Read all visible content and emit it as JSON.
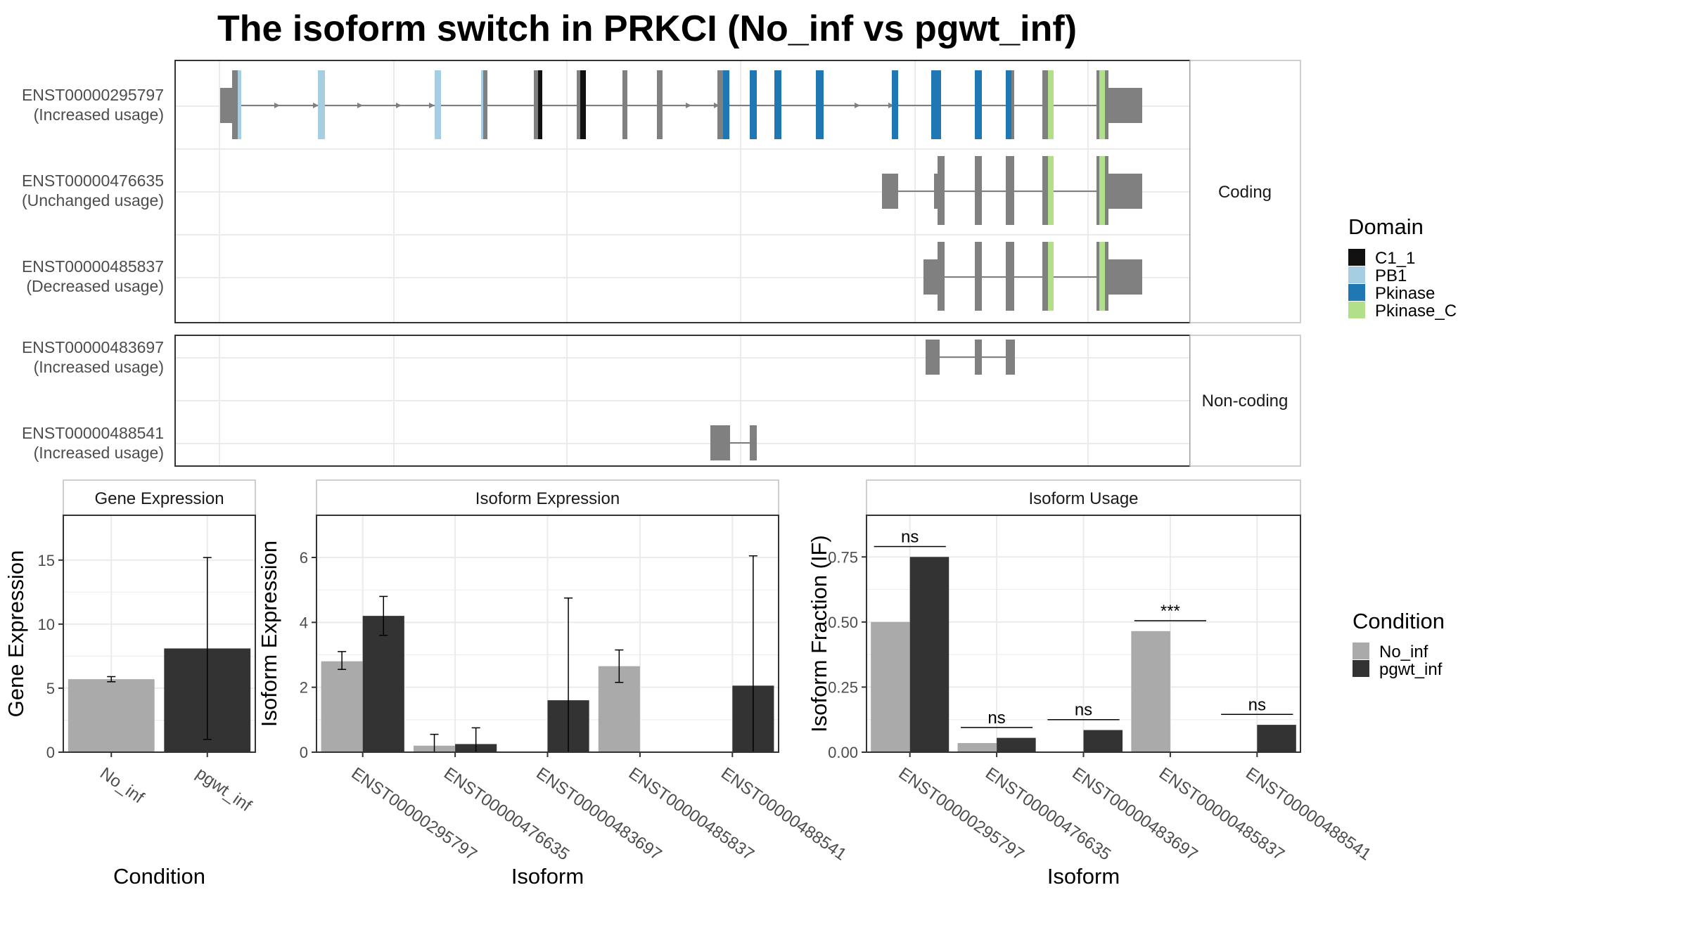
{
  "title": "The isoform switch in PRKCI (No_inf vs pgwt_inf)",
  "colors": {
    "intron": "#7f7f7f",
    "exon_plain": "#808080",
    "no_inf": "#aaaaaa",
    "pgwt_inf": "#333333",
    "grid": "#ebebeb",
    "panel_border": "#333333",
    "strip_border": "#bfbfbf"
  },
  "structure": {
    "facets": [
      {
        "label": "Coding",
        "isoforms": [
          {
            "id": "ENST00000295797",
            "usage": "(Increased usage)"
          },
          {
            "id": "ENST00000476635",
            "usage": "(Unchanged usage)"
          },
          {
            "id": "ENST00000485837",
            "usage": "(Decreased usage)"
          }
        ]
      },
      {
        "label": "Non-coding",
        "isoforms": [
          {
            "id": "ENST00000483697",
            "usage": "(Increased usage)"
          },
          {
            "id": "ENST00000488541",
            "usage": "(Increased usage)"
          }
        ]
      }
    ],
    "domain_legend": {
      "title": "Domain",
      "items": [
        {
          "label": "C1_1",
          "color": "#111111"
        },
        {
          "label": "PB1",
          "color": "#a6cee3"
        },
        {
          "label": "Pkinase",
          "color": "#1f78b4"
        },
        {
          "label": "Pkinase_C",
          "color": "#b2df8a"
        }
      ]
    }
  },
  "condition_legend": {
    "title": "Condition",
    "items": [
      {
        "label": "No_inf",
        "color": "#aaaaaa"
      },
      {
        "label": "pgwt_inf",
        "color": "#333333"
      }
    ]
  },
  "chart_data": [
    {
      "type": "bar",
      "title": "Gene Expression",
      "xlabel": "Condition",
      "ylabel": "Gene Expression",
      "categories": [
        "No_inf",
        "pgwt_inf"
      ],
      "values": [
        5.7,
        8.1
      ],
      "error_low": [
        5.5,
        1.0
      ],
      "error_high": [
        5.9,
        15.2
      ],
      "ylim": [
        0,
        18.5
      ],
      "yticks": [
        0,
        5,
        10,
        15
      ],
      "ytick_labels": [
        "0",
        "5",
        "10",
        "15"
      ],
      "grid": true
    },
    {
      "type": "bar",
      "title": "Isoform Expression",
      "xlabel": "Isoform",
      "ylabel": "Isoform Expression",
      "categories": [
        "ENST00000295797",
        "ENST00000476635",
        "ENST00000483697",
        "ENST00000485837",
        "ENST00000488541"
      ],
      "series": [
        {
          "name": "No_inf",
          "values": [
            2.8,
            0.2,
            0.0,
            2.65,
            0.0
          ],
          "error_low": [
            2.55,
            0.0,
            0.0,
            2.15,
            0.0
          ],
          "error_high": [
            3.1,
            0.55,
            0.0,
            3.15,
            0.0
          ]
        },
        {
          "name": "pgwt_inf",
          "values": [
            4.2,
            0.25,
            1.6,
            0.0,
            2.05
          ],
          "error_low": [
            3.6,
            0.0,
            0.0,
            0.0,
            0.0
          ],
          "error_high": [
            4.8,
            0.75,
            4.75,
            0.0,
            6.05
          ]
        }
      ],
      "ylim": [
        0,
        7.3
      ],
      "yticks": [
        0,
        2,
        4,
        6
      ],
      "ytick_labels": [
        "0",
        "2",
        "4",
        "6"
      ],
      "grid": true
    },
    {
      "type": "bar",
      "title": "Isoform Usage",
      "xlabel": "Isoform",
      "ylabel": "Isoform Fraction (IF)",
      "categories": [
        "ENST00000295797",
        "ENST00000476635",
        "ENST00000483697",
        "ENST00000485837",
        "ENST00000488541"
      ],
      "series": [
        {
          "name": "No_inf",
          "values": [
            0.5,
            0.035,
            0.0,
            0.465,
            0.0
          ]
        },
        {
          "name": "pgwt_inf",
          "values": [
            0.75,
            0.055,
            0.085,
            0.0,
            0.105
          ]
        }
      ],
      "significance": [
        {
          "category": 0,
          "label": "ns",
          "y": 0.79
        },
        {
          "category": 1,
          "label": "ns",
          "y": 0.095
        },
        {
          "category": 2,
          "label": "ns",
          "y": 0.125
        },
        {
          "category": 3,
          "label": "***",
          "y": 0.505
        },
        {
          "category": 4,
          "label": "ns",
          "y": 0.145
        }
      ],
      "ylim": [
        0,
        0.91
      ],
      "yticks": [
        0,
        0.25,
        0.5,
        0.75
      ],
      "ytick_labels": [
        "0.00",
        "0.25",
        "0.50",
        "0.75"
      ],
      "grid": true
    }
  ]
}
